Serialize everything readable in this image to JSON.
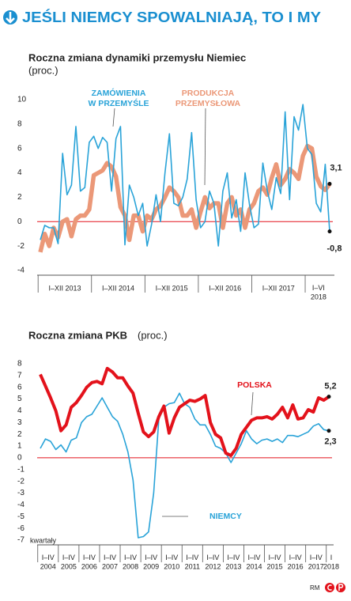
{
  "header": {
    "title": "JEŚLI NIEMCY SPOWALNIAJĄ, TO I MY"
  },
  "chart_data": [
    {
      "type": "line",
      "title": "Roczna zmiana dynamiki przemysłu Niemiec",
      "subtitle": "(proc.)",
      "categories": [
        null,
        null,
        null,
        null,
        null,
        "I–XII 2013",
        null,
        null,
        null,
        null,
        null,
        null,
        null,
        null,
        null,
        null,
        null,
        "I–XII 2014",
        null,
        null,
        null,
        null,
        null,
        null,
        null,
        null,
        null,
        null,
        null,
        "I–XII 2015",
        null,
        null,
        null,
        null,
        null,
        null,
        null,
        null,
        null,
        null,
        null,
        "I–XII 2016",
        null,
        null,
        null,
        null,
        null,
        null,
        null,
        null,
        null,
        null,
        null,
        "I–XII 2017",
        null,
        null,
        null,
        null,
        null,
        null,
        null,
        null,
        "I–VI\n2018",
        null,
        null,
        null
      ],
      "series": [
        {
          "name": "ZAMÓWIENIA\nW PRZEMYŚLE",
          "color": "#29a3d8",
          "values": [
            -1.5,
            -0.3,
            -0.5,
            -0.5,
            -1.8,
            5.6,
            2.2,
            3,
            7.8,
            2.5,
            2.8,
            6.5,
            7,
            6,
            6.9,
            6.5,
            2.5,
            6.8,
            7.8,
            -1.9,
            3,
            2,
            0.5,
            1.5,
            -2,
            -0.2,
            2.2,
            0,
            4,
            7.2,
            1.5,
            1.3,
            2,
            3.5,
            7.3,
            1.8,
            -0.5,
            0,
            2.5,
            1.5,
            -2,
            2.5,
            4,
            0.3,
            1.8,
            -0.8,
            4,
            1.4,
            -0.5,
            -0.2,
            4.8,
            2.5,
            1,
            3.6,
            2.3,
            9,
            1.8,
            8.6,
            7.5,
            9.6,
            6,
            5.5,
            1.5,
            0.8,
            4.7,
            -0.8
          ],
          "value_labels": [
            null,
            null,
            null,
            null,
            null,
            null,
            null,
            null,
            null,
            null,
            null,
            null,
            null,
            null,
            null,
            null,
            null,
            null,
            null,
            null,
            null,
            null,
            null,
            null,
            null,
            null,
            null,
            null,
            null,
            null,
            null,
            null,
            null,
            null,
            null,
            null,
            null,
            null,
            null,
            null,
            null,
            null,
            null,
            null,
            null,
            null,
            null,
            null,
            null,
            null,
            null,
            null,
            null,
            null,
            null,
            null,
            null,
            null,
            null,
            null,
            null,
            null,
            null,
            null,
            null,
            "-0,8"
          ]
        },
        {
          "name": "PRODUKCJA\nPRZEMYSŁOWA",
          "color": "#eb9878",
          "values": [
            -2.5,
            -1,
            -2,
            -0.5,
            -1.3,
            0,
            0.2,
            -1.2,
            0.2,
            0.5,
            0.5,
            1,
            3.8,
            4,
            4.2,
            4.8,
            4.5,
            3.7,
            1.2,
            0.5,
            -1.5,
            0.5,
            0.5,
            -0.8,
            0.5,
            0.2,
            1,
            1.3,
            2,
            2.8,
            2.5,
            2,
            0.5,
            0.5,
            1,
            -0.5,
            0.8,
            2,
            1.1,
            1.5,
            1.5,
            -0.5,
            1.5,
            2,
            0.5,
            1,
            -0.5,
            1,
            1.5,
            2.5,
            2.8,
            2.2,
            3.6,
            4.7,
            3,
            3.5,
            4.3,
            4,
            3.5,
            5.4,
            6.2,
            6,
            3.7,
            2.9,
            2.6,
            3.1
          ],
          "value_labels": [
            null,
            null,
            null,
            null,
            null,
            null,
            null,
            null,
            null,
            null,
            null,
            null,
            null,
            null,
            null,
            null,
            null,
            null,
            null,
            null,
            null,
            null,
            null,
            null,
            null,
            null,
            null,
            null,
            null,
            null,
            null,
            null,
            null,
            null,
            null,
            null,
            null,
            null,
            null,
            null,
            null,
            null,
            null,
            null,
            null,
            null,
            null,
            null,
            null,
            null,
            null,
            null,
            null,
            null,
            null,
            null,
            null,
            null,
            null,
            null,
            null,
            null,
            null,
            null,
            null,
            "3,1"
          ]
        }
      ],
      "ylim": [
        -4,
        10
      ],
      "yticks": [
        -4,
        -2,
        0,
        2,
        4,
        6,
        8,
        10
      ],
      "zero_line_color": "#e3121b"
    },
    {
      "type": "line",
      "title": "Roczna zmiana PKB",
      "subtitle": "(proc.)",
      "xlabel": "kwartały",
      "categories": [
        null,
        "I–IV\n2004",
        null,
        null,
        null,
        "I–IV\n2005",
        null,
        null,
        null,
        "I–IV\n2006",
        null,
        null,
        null,
        "I–IV\n2007",
        null,
        null,
        null,
        "I–IV\n2008",
        null,
        null,
        null,
        "I–IV\n2009",
        null,
        null,
        null,
        "I–IV\n2010",
        null,
        null,
        null,
        "I–IV\n2011",
        null,
        null,
        null,
        "I–IV\n2012",
        null,
        null,
        null,
        "I–IV\n2013",
        null,
        null,
        null,
        "I–IV\n2014",
        null,
        null,
        null,
        "I–IV\n2015",
        null,
        null,
        null,
        "I–IV\n2016",
        null,
        null,
        null,
        "I–IV\n2017",
        null,
        null,
        "I\n2018"
      ],
      "series": [
        {
          "name": "POLSKA",
          "color": "#e3121b",
          "values": [
            7.1,
            6.1,
            5.1,
            4,
            2.3,
            2.8,
            4.3,
            4.7,
            5.3,
            6,
            6.4,
            6.5,
            6.3,
            7.6,
            7.3,
            6.8,
            6.8,
            6.1,
            5.5,
            3.8,
            2.2,
            1.8,
            2.2,
            3.5,
            4.4,
            2.1,
            3.4,
            4.3,
            4.6,
            4.9,
            4.8,
            5,
            5.3,
            3,
            2,
            1.7,
            0.4,
            0.2,
            0.8,
            2,
            2.6,
            3.2,
            3.4,
            3.4,
            3.5,
            3.3,
            3.7,
            4.3,
            3.4,
            4.5,
            3.3,
            3.4,
            4.1,
            3.9,
            5.1,
            4.9,
            5.2
          ],
          "value_labels": [
            null,
            null,
            null,
            null,
            null,
            null,
            null,
            null,
            null,
            null,
            null,
            null,
            null,
            null,
            null,
            null,
            null,
            null,
            null,
            null,
            null,
            null,
            null,
            null,
            null,
            null,
            null,
            null,
            null,
            null,
            null,
            null,
            null,
            null,
            null,
            null,
            null,
            null,
            null,
            null,
            null,
            null,
            null,
            null,
            null,
            null,
            null,
            null,
            null,
            null,
            null,
            null,
            null,
            null,
            null,
            null,
            "5,2"
          ]
        },
        {
          "name": "NIEMCY",
          "color": "#29a3d8",
          "values": [
            0.8,
            1.6,
            1.4,
            0.7,
            1.1,
            0.5,
            1.5,
            1.7,
            3,
            3.5,
            3.7,
            4.4,
            5.1,
            4.3,
            3.5,
            3.1,
            2,
            0.5,
            -1.9,
            -6.8,
            -6.7,
            -6.3,
            -3,
            3.3,
            4.3,
            4.6,
            4.7,
            5.5,
            4.6,
            4.3,
            3.3,
            2.8,
            2.8,
            2,
            1,
            0.8,
            0.4,
            -0.4,
            0.4,
            1.2,
            2.3,
            1.6,
            1.2,
            1.5,
            1.6,
            1.4,
            1.6,
            1.3,
            1.9,
            1.9,
            1.8,
            2,
            2.2,
            2.7,
            2.9,
            2.4,
            2.3
          ],
          "value_labels": [
            null,
            null,
            null,
            null,
            null,
            null,
            null,
            null,
            null,
            null,
            null,
            null,
            null,
            null,
            null,
            null,
            null,
            null,
            null,
            null,
            null,
            null,
            null,
            null,
            null,
            null,
            null,
            null,
            null,
            null,
            null,
            null,
            null,
            null,
            null,
            null,
            null,
            null,
            null,
            null,
            null,
            null,
            null,
            null,
            null,
            null,
            null,
            null,
            null,
            null,
            null,
            null,
            null,
            null,
            null,
            null,
            "2,3"
          ]
        }
      ],
      "ylim": [
        -7,
        8
      ],
      "yticks": [
        -7,
        -6,
        -5,
        -4,
        -3,
        -2,
        -1,
        0,
        1,
        2,
        3,
        4,
        5,
        6,
        7,
        8
      ],
      "zero_line_color": "#e3121b"
    }
  ],
  "footer": {
    "credit": "RM"
  }
}
